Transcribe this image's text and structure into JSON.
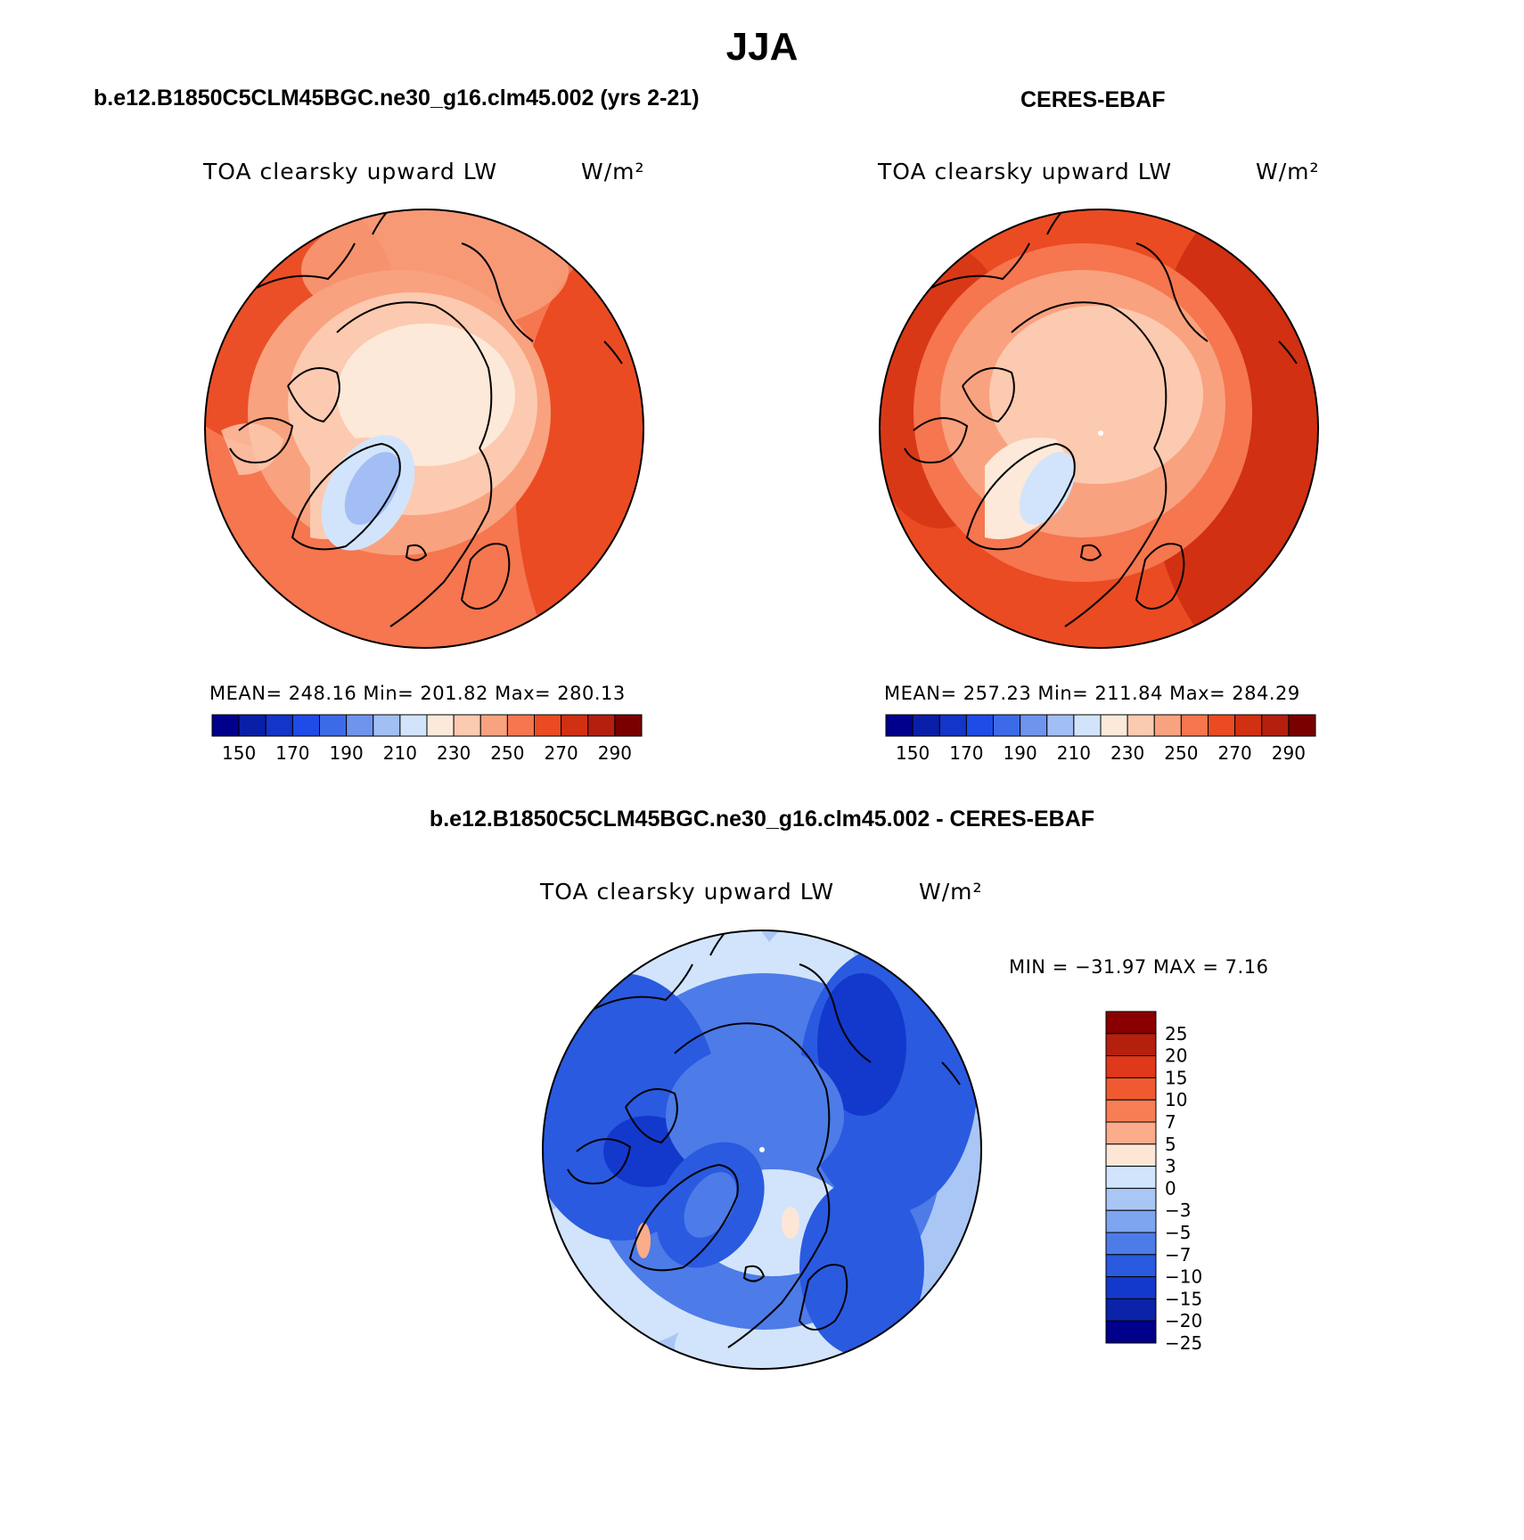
{
  "title": "JJA",
  "panels": [
    {
      "id": "model",
      "header": "b.e12.B1850C5CLM45BGC.ne30_g16.clm45.002 (yrs 2-21)",
      "variable": "TOA clearsky upward LW",
      "units": "W/m²",
      "stats": "MEAN= 248.16   Min= 201.82   Max= 280.13",
      "mean": 248.16,
      "min": 201.82,
      "max": 280.13
    },
    {
      "id": "obs",
      "header": "CERES-EBAF",
      "variable": "TOA clearsky upward LW",
      "units": "W/m²",
      "stats": "MEAN= 257.23   Min= 211.84   Max= 284.29",
      "mean": 257.23,
      "min": 211.84,
      "max": 284.29
    },
    {
      "id": "diff",
      "header": "b.e12.B1850C5CLM45BGC.ne30_g16.clm45.002 - CERES-EBAF",
      "variable": "TOA clearsky upward LW",
      "units": "W/m²",
      "stats": "MIN = −31.97 MAX =    7.16",
      "min": -31.97,
      "max": 7.16
    }
  ],
  "colorbars": {
    "abs": {
      "colors": [
        "#00008a",
        "#0a1fa8",
        "#1335c8",
        "#1f4be6",
        "#3d6be8",
        "#6f94ee",
        "#a3bef4",
        "#d2e4fb",
        "#fde9d9",
        "#fccab0",
        "#f9a27f",
        "#f5764f",
        "#ea4b22",
        "#d13012",
        "#b5200e",
        "#7a0000"
      ],
      "tick_labels": [
        "150",
        "170",
        "190",
        "210",
        "230",
        "250",
        "270",
        "290"
      ]
    },
    "diff": {
      "colors_top_to_bottom": [
        "#8a0000",
        "#b5200e",
        "#e0381a",
        "#f05a30",
        "#f77e55",
        "#fbac8a",
        "#fde6d6",
        "#d2e4fb",
        "#a9c6f5",
        "#7ea6f0",
        "#4d7be8",
        "#2a5ae0",
        "#1338cc",
        "#0b23a8",
        "#00008a"
      ],
      "tick_labels": [
        "25",
        "20",
        "15",
        "10",
        "7",
        "5",
        "3",
        "0",
        "−3",
        "−5",
        "−7",
        "−10",
        "−15",
        "−20",
        "−25"
      ]
    }
  }
}
